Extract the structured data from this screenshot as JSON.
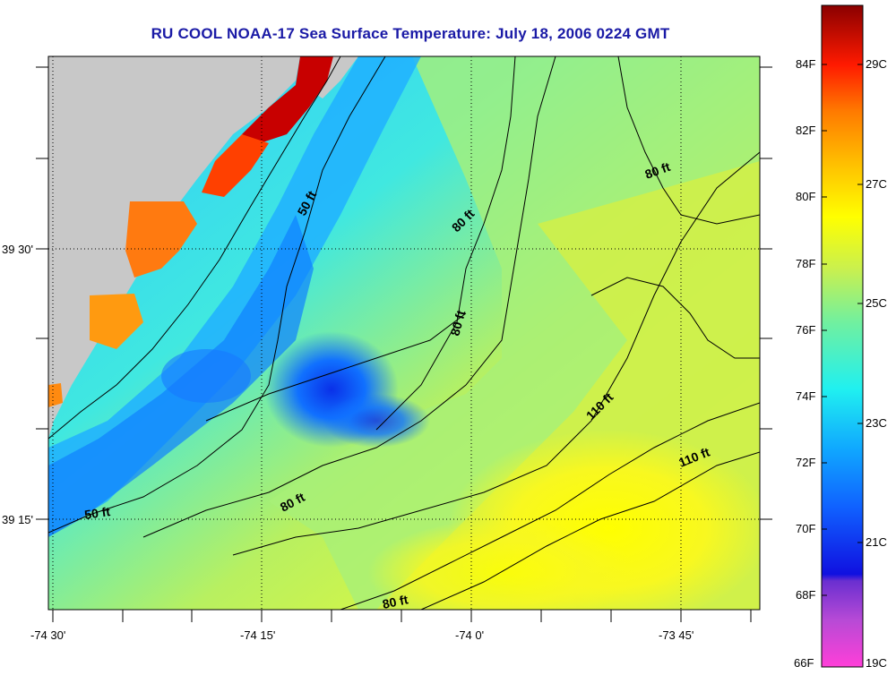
{
  "title": "RU COOL  NOAA-17  Sea Surface Temperature:  July 18, 2006 0224 GMT",
  "lat_labels": [
    "39 30'",
    "39 15'"
  ],
  "lon_labels": [
    "-74 30'",
    "-74 15'",
    "-74 0'",
    "-73 45'"
  ],
  "depth_labels": [
    "50 ft",
    "80 ft",
    "80 ft",
    "80 ft",
    "110 ft",
    "50 ft",
    "80 ft",
    "80 ft",
    "110 ft"
  ],
  "colorbar": {
    "fahrenheit": [
      "84F",
      "82F",
      "80F",
      "78F",
      "76F",
      "74F",
      "72F",
      "70F",
      "68F",
      "66F"
    ],
    "celsius": [
      "29C",
      "27C",
      "25C",
      "23C",
      "21C",
      "19C"
    ]
  },
  "colors": {
    "title": "#1a1aa6",
    "land": "#c8c8c8"
  }
}
